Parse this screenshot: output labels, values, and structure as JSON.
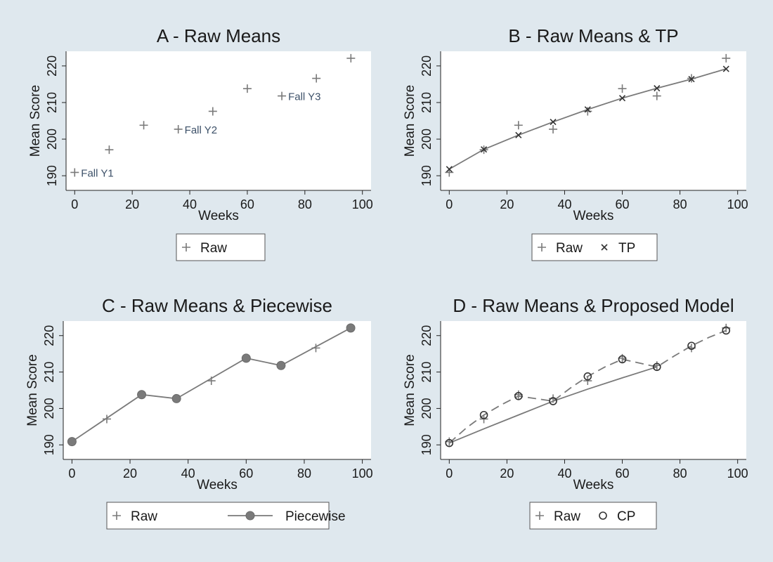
{
  "chart_data": [
    {
      "id": "A",
      "type": "scatter",
      "title": "A - Raw Means",
      "xlabel": "Weeks",
      "ylabel": "Mean Score",
      "xlim": [
        -3,
        103
      ],
      "ylim": [
        186,
        224
      ],
      "xticks": [
        "0",
        "20",
        "40",
        "60",
        "80",
        "100"
      ],
      "yticks": [
        "190",
        "200",
        "210",
        "220"
      ],
      "series": [
        {
          "name": "Raw",
          "marker": "plus",
          "line": "none",
          "x": [
            0,
            12,
            24,
            36,
            48,
            60,
            72,
            84,
            96
          ],
          "y": [
            190.9,
            197.1,
            203.8,
            202.7,
            207.6,
            213.8,
            211.8,
            216.6,
            222.1
          ]
        }
      ],
      "annotations": [
        {
          "text": "Fall Y1",
          "x": 0,
          "y": 190.9
        },
        {
          "text": "Fall Y2",
          "x": 36,
          "y": 202.7
        },
        {
          "text": "Fall Y3",
          "x": 72,
          "y": 211.8
        }
      ],
      "legend": [
        {
          "label": "Raw",
          "marker": "plus",
          "line": "none"
        }
      ]
    },
    {
      "id": "B",
      "type": "line",
      "title": "B - Raw Means & TP",
      "xlabel": "Weeks",
      "ylabel": "Mean Score",
      "xlim": [
        -3,
        103
      ],
      "ylim": [
        186,
        224
      ],
      "xticks": [
        "0",
        "20",
        "40",
        "60",
        "80",
        "100"
      ],
      "yticks": [
        "190",
        "200",
        "210",
        "220"
      ],
      "series": [
        {
          "name": "Raw",
          "marker": "plus",
          "line": "none",
          "x": [
            0,
            12,
            24,
            36,
            48,
            60,
            72,
            84,
            96
          ],
          "y": [
            190.9,
            197.1,
            203.8,
            202.7,
            207.6,
            213.8,
            211.8,
            216.6,
            222.1
          ]
        },
        {
          "name": "TP",
          "marker": "x",
          "line": "solid",
          "x": [
            0,
            12,
            24,
            36,
            48,
            60,
            72,
            84,
            96
          ],
          "y": [
            191.8,
            197.2,
            201.1,
            204.7,
            208.1,
            211.2,
            213.9,
            216.4,
            219.2
          ]
        }
      ],
      "legend": [
        {
          "label": "Raw",
          "marker": "plus",
          "line": "none"
        },
        {
          "label": "TP",
          "marker": "x",
          "line": "none"
        }
      ]
    },
    {
      "id": "C",
      "type": "line",
      "title": "C - Raw Means & Piecewise",
      "xlabel": "Weeks",
      "ylabel": "Mean Score",
      "xlim": [
        -3,
        103
      ],
      "ylim": [
        186,
        224
      ],
      "xticks": [
        "0",
        "20",
        "40",
        "60",
        "80",
        "100"
      ],
      "yticks": [
        "190",
        "200",
        "210",
        "220"
      ],
      "series": [
        {
          "name": "Raw",
          "marker": "plus",
          "line": "none",
          "x": [
            0,
            12,
            24,
            36,
            48,
            60,
            72,
            84,
            96
          ],
          "y": [
            190.9,
            197.1,
            203.8,
            202.7,
            207.6,
            213.8,
            211.8,
            216.6,
            222.1
          ]
        },
        {
          "name": "Piecewise",
          "marker": "dot",
          "line": "solid",
          "x": [
            0,
            24,
            36,
            60,
            72,
            96
          ],
          "y": [
            190.9,
            203.8,
            202.7,
            213.8,
            211.8,
            222.1
          ]
        }
      ],
      "legend": [
        {
          "label": "Raw",
          "marker": "plus",
          "line": "none"
        },
        {
          "label": "Piecewise",
          "marker": "dot",
          "line": "solid"
        }
      ]
    },
    {
      "id": "D",
      "type": "line",
      "title": "D - Raw Means & Proposed Model",
      "xlabel": "Weeks",
      "ylabel": "Mean Score",
      "xlim": [
        -3,
        103
      ],
      "ylim": [
        186,
        224
      ],
      "xticks": [
        "0",
        "20",
        "40",
        "60",
        "80",
        "100"
      ],
      "yticks": [
        "190",
        "200",
        "210",
        "220"
      ],
      "series": [
        {
          "name": "Raw",
          "marker": "plus",
          "line": "none",
          "x": [
            0,
            12,
            24,
            36,
            48,
            60,
            72,
            84,
            96
          ],
          "y": [
            190.9,
            197.1,
            203.8,
            202.7,
            207.6,
            213.8,
            211.8,
            216.6,
            222.1
          ]
        },
        {
          "name": "CP",
          "marker": "circle",
          "line": "none",
          "x": [
            0,
            12,
            24,
            36,
            48,
            60,
            72,
            84,
            96
          ],
          "y": [
            190.5,
            198.2,
            203.4,
            202.0,
            208.8,
            213.5,
            211.4,
            217.2,
            221.4
          ]
        },
        {
          "name": "",
          "marker": "none",
          "line": "dashed",
          "x": [
            0,
            6,
            12,
            18,
            24,
            36,
            42,
            48,
            54,
            60,
            72,
            78,
            84,
            90,
            96
          ],
          "y": [
            190.5,
            194.7,
            198.2,
            201.0,
            203.4,
            202.0,
            205.6,
            208.8,
            211.4,
            213.5,
            211.4,
            214.4,
            217.2,
            219.5,
            221.4
          ]
        },
        {
          "name": "",
          "marker": "none",
          "line": "solid",
          "x": [
            0,
            12,
            24,
            36,
            48,
            60,
            72
          ],
          "y": [
            190.5,
            194.4,
            198.2,
            202.0,
            205.3,
            208.4,
            211.4
          ]
        }
      ],
      "legend": [
        {
          "label": "Raw",
          "marker": "plus",
          "line": "none"
        },
        {
          "label": "CP",
          "marker": "circle",
          "line": "none"
        }
      ]
    }
  ]
}
